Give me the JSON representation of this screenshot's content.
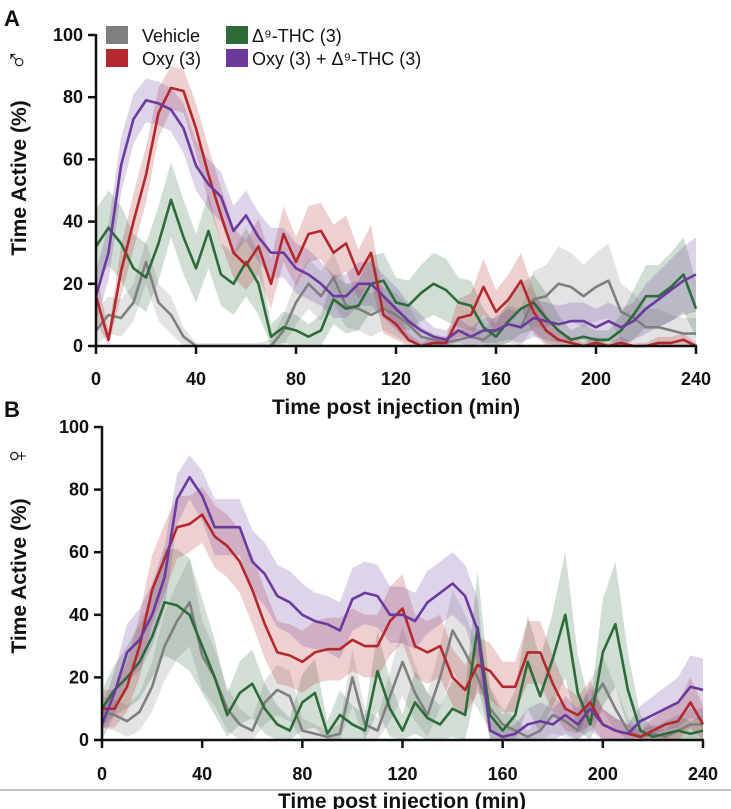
{
  "colors": {
    "Vehicle": "#7f7f7f",
    "Oxy (3)": "#b3282d",
    "Δ⁹-THC (3)": "#2e6b3a",
    "Oxy (3) + Δ⁹-THC (3)": "#6b3a9c"
  },
  "legend": {
    "entries": [
      "Vehicle",
      "Δ⁹-THC (3)",
      "Oxy (3)",
      "Oxy (3) + Δ⁹-THC (3)"
    ]
  },
  "chart_data": [
    {
      "panel": "A",
      "sex_symbol": "♂",
      "type": "line",
      "xlabel": "Time post injection (min)",
      "ylabel": "Time Active  (%)",
      "xlim": [
        0,
        240
      ],
      "ylim": [
        0,
        100
      ],
      "xticks": [
        "0",
        "40",
        "80",
        "120",
        "160",
        "200",
        "240"
      ],
      "yticks": [
        "0",
        "20",
        "40",
        "60",
        "80",
        "100"
      ],
      "x": [
        0,
        5,
        10,
        15,
        20,
        25,
        30,
        35,
        40,
        45,
        50,
        55,
        60,
        65,
        70,
        75,
        80,
        85,
        90,
        95,
        100,
        105,
        110,
        115,
        120,
        125,
        130,
        135,
        140,
        145,
        150,
        155,
        160,
        165,
        170,
        175,
        180,
        185,
        190,
        195,
        200,
        205,
        210,
        215,
        220,
        225,
        230,
        235,
        240
      ],
      "series": [
        {
          "name": "Vehicle",
          "values": [
            5,
            10,
            9,
            14,
            27,
            14,
            10,
            3,
            0,
            0,
            0,
            0,
            0,
            0,
            0,
            5,
            14,
            20,
            16,
            22,
            13,
            12,
            10,
            12,
            10,
            7,
            3,
            2,
            1,
            2,
            3,
            2,
            5,
            7,
            6,
            15,
            16,
            20,
            19,
            16,
            19,
            21,
            11,
            9,
            6,
            6,
            5,
            4,
            4
          ],
          "sem": [
            6,
            6,
            6,
            6,
            7,
            6,
            6,
            3,
            1,
            1,
            1,
            1,
            1,
            1,
            2,
            5,
            7,
            8,
            8,
            8,
            7,
            7,
            7,
            7,
            7,
            6,
            3,
            2,
            2,
            3,
            3,
            3,
            5,
            6,
            6,
            9,
            10,
            12,
            11,
            10,
            11,
            12,
            9,
            8,
            6,
            6,
            5,
            5,
            5
          ]
        },
        {
          "name": "Δ⁹-THC (3)",
          "values": [
            32,
            38,
            33,
            25,
            22,
            33,
            47,
            35,
            25,
            37,
            23,
            20,
            27,
            20,
            3,
            6,
            5,
            3,
            5,
            15,
            12,
            13,
            20,
            21,
            14,
            13,
            17,
            20,
            18,
            14,
            13,
            6,
            3,
            8,
            12,
            14,
            9,
            5,
            2,
            3,
            2,
            2,
            5,
            10,
            16,
            16,
            19,
            23,
            12
          ],
          "sem": [
            12,
            12,
            12,
            11,
            11,
            12,
            12,
            12,
            11,
            12,
            10,
            10,
            11,
            10,
            4,
            5,
            5,
            4,
            5,
            8,
            8,
            8,
            9,
            9,
            8,
            8,
            9,
            10,
            10,
            8,
            8,
            6,
            4,
            7,
            8,
            9,
            8,
            5,
            3,
            4,
            3,
            3,
            5,
            8,
            10,
            10,
            11,
            12,
            9
          ]
        },
        {
          "name": "Oxy (3)",
          "values": [
            16,
            2,
            24,
            40,
            55,
            75,
            83,
            82,
            70,
            55,
            42,
            30,
            26,
            32,
            20,
            36,
            27,
            36,
            37,
            30,
            33,
            23,
            30,
            10,
            7,
            2,
            0,
            1,
            1,
            9,
            10,
            19,
            11,
            15,
            21,
            11,
            5,
            2,
            1,
            0,
            1,
            0,
            1,
            0,
            0,
            1,
            1,
            2,
            0
          ],
          "sem": [
            8,
            3,
            8,
            9,
            9,
            8,
            7,
            7,
            8,
            9,
            9,
            8,
            8,
            9,
            8,
            9,
            8,
            9,
            9,
            9,
            9,
            8,
            9,
            6,
            5,
            2,
            1,
            2,
            2,
            6,
            7,
            9,
            7,
            8,
            9,
            7,
            5,
            3,
            2,
            1,
            2,
            1,
            2,
            1,
            1,
            2,
            2,
            2,
            1
          ]
        },
        {
          "name": "Oxy (3) + Δ⁹-THC (3)",
          "values": [
            16,
            30,
            58,
            73,
            79,
            78,
            76,
            70,
            58,
            52,
            48,
            37,
            42,
            35,
            30,
            30,
            25,
            23,
            20,
            16,
            16,
            20,
            20,
            16,
            12,
            8,
            5,
            3,
            2,
            5,
            3,
            5,
            5,
            7,
            6,
            9,
            8,
            7,
            8,
            8,
            6,
            8,
            6,
            8,
            12,
            15,
            18,
            21,
            23
          ],
          "sem": [
            8,
            9,
            9,
            8,
            7,
            7,
            7,
            8,
            8,
            8,
            8,
            8,
            8,
            8,
            8,
            8,
            8,
            8,
            7,
            7,
            7,
            7,
            7,
            7,
            7,
            6,
            5,
            3,
            3,
            4,
            3,
            4,
            4,
            5,
            5,
            6,
            6,
            6,
            6,
            6,
            6,
            6,
            6,
            6,
            8,
            9,
            10,
            11,
            12
          ]
        }
      ]
    },
    {
      "panel": "B",
      "sex_symbol": "♀",
      "type": "line",
      "xlabel": "Time post injection (min)",
      "ylabel": "Time Active  (%)",
      "xlim": [
        0,
        240
      ],
      "ylim": [
        0,
        100
      ],
      "xticks": [
        "0",
        "40",
        "80",
        "120",
        "160",
        "200",
        "240"
      ],
      "yticks": [
        "0",
        "20",
        "40",
        "60",
        "80",
        "100"
      ],
      "x": [
        0,
        5,
        10,
        15,
        20,
        25,
        30,
        35,
        40,
        45,
        50,
        55,
        60,
        65,
        70,
        75,
        80,
        85,
        90,
        95,
        100,
        105,
        110,
        115,
        120,
        125,
        130,
        135,
        140,
        145,
        150,
        155,
        160,
        165,
        170,
        175,
        180,
        185,
        190,
        195,
        200,
        205,
        210,
        215,
        220,
        225,
        230,
        235,
        240
      ],
      "series": [
        {
          "name": "Vehicle",
          "values": [
            9,
            8,
            6,
            9,
            17,
            30,
            38,
            44,
            27,
            20,
            10,
            5,
            3,
            12,
            16,
            14,
            3,
            2,
            1,
            2,
            20,
            5,
            3,
            14,
            25,
            15,
            8,
            20,
            35,
            28,
            20,
            10,
            5,
            3,
            1,
            3,
            8,
            6,
            3,
            12,
            18,
            10,
            3,
            1,
            2,
            1,
            3,
            5,
            5
          ],
          "sem": [
            5,
            5,
            5,
            6,
            8,
            11,
            12,
            14,
            11,
            9,
            7,
            5,
            4,
            7,
            8,
            8,
            4,
            3,
            2,
            3,
            9,
            5,
            4,
            8,
            11,
            9,
            7,
            10,
            13,
            12,
            10,
            7,
            5,
            4,
            2,
            4,
            6,
            5,
            4,
            7,
            9,
            7,
            4,
            2,
            3,
            2,
            4,
            5,
            5
          ]
        },
        {
          "name": "Δ⁹-THC (3)",
          "values": [
            10,
            16,
            20,
            25,
            33,
            44,
            43,
            40,
            30,
            20,
            8,
            15,
            18,
            10,
            5,
            3,
            12,
            15,
            2,
            8,
            5,
            3,
            22,
            10,
            3,
            12,
            7,
            5,
            10,
            8,
            36,
            8,
            3,
            8,
            25,
            14,
            26,
            40,
            15,
            5,
            28,
            37,
            16,
            3,
            1,
            2,
            3,
            2,
            3
          ],
          "sem": [
            6,
            8,
            10,
            12,
            13,
            17,
            18,
            18,
            15,
            12,
            7,
            10,
            11,
            8,
            6,
            4,
            9,
            11,
            4,
            8,
            6,
            5,
            13,
            9,
            5,
            10,
            8,
            6,
            9,
            8,
            18,
            8,
            5,
            8,
            15,
            12,
            15,
            20,
            12,
            6,
            17,
            20,
            12,
            5,
            3,
            4,
            5,
            4,
            5
          ]
        },
        {
          "name": "Oxy (3)",
          "values": [
            10,
            10,
            17,
            30,
            48,
            58,
            68,
            69,
            72,
            65,
            62,
            57,
            48,
            37,
            28,
            27,
            25,
            28,
            29,
            29,
            32,
            30,
            30,
            38,
            42,
            30,
            28,
            30,
            20,
            16,
            24,
            22,
            17,
            17,
            28,
            28,
            18,
            10,
            8,
            12,
            5,
            3,
            2,
            1,
            3,
            5,
            6,
            12,
            5
          ],
          "sem": [
            6,
            6,
            8,
            10,
            11,
            11,
            10,
            9,
            9,
            10,
            10,
            10,
            11,
            11,
            10,
            10,
            10,
            10,
            10,
            10,
            10,
            10,
            10,
            11,
            11,
            10,
            10,
            10,
            9,
            8,
            9,
            9,
            8,
            8,
            10,
            10,
            9,
            7,
            6,
            7,
            5,
            4,
            3,
            2,
            4,
            5,
            6,
            8,
            6
          ]
        },
        {
          "name": "Oxy (3) + Δ⁹-THC (3)",
          "values": [
            5,
            15,
            28,
            32,
            40,
            52,
            77,
            84,
            78,
            68,
            68,
            68,
            57,
            53,
            46,
            44,
            40,
            38,
            37,
            35,
            45,
            47,
            46,
            40,
            40,
            38,
            44,
            47,
            50,
            46,
            35,
            3,
            1,
            2,
            5,
            6,
            5,
            8,
            5,
            10,
            5,
            3,
            2,
            6,
            8,
            10,
            12,
            17,
            16
          ],
          "sem": [
            5,
            7,
            9,
            10,
            10,
            10,
            8,
            7,
            8,
            9,
            9,
            9,
            10,
            10,
            10,
            10,
            10,
            9,
            9,
            9,
            10,
            10,
            10,
            9,
            9,
            9,
            10,
            10,
            10,
            10,
            10,
            4,
            2,
            3,
            5,
            6,
            5,
            6,
            5,
            7,
            5,
            4,
            3,
            5,
            6,
            7,
            8,
            10,
            10
          ]
        }
      ]
    }
  ]
}
